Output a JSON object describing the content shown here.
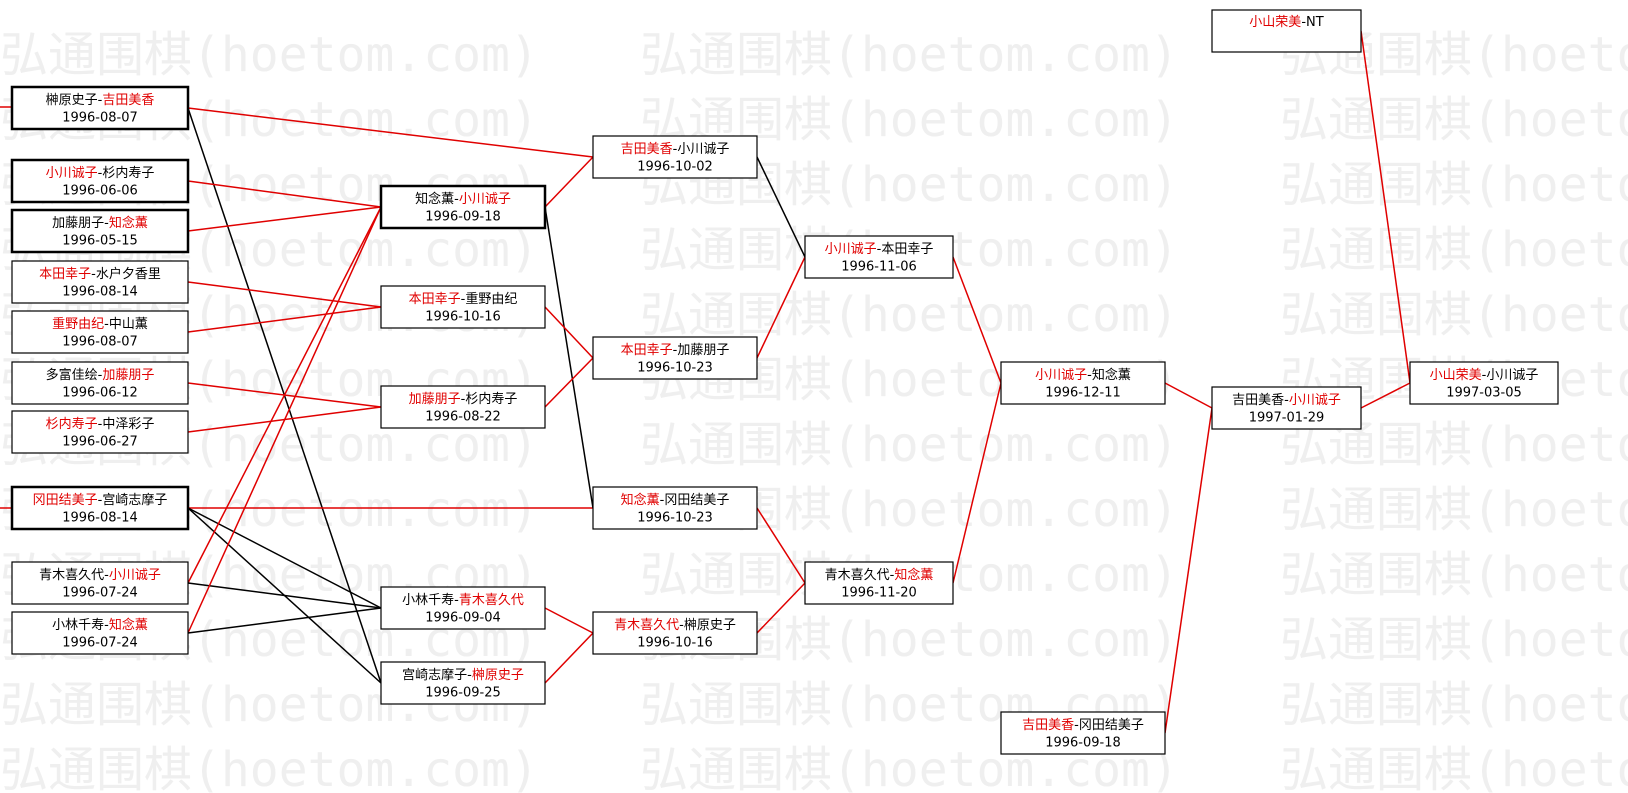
{
  "watermark": "弘通围棋(hoetom.com)",
  "separator": "-",
  "winner_color": "#e00000",
  "nodes": [
    {
      "players": [
        "榊原史子",
        "吉田美香"
      ],
      "winner": 1,
      "date": "1996-08-07",
      "bold_border": true
    },
    {
      "players": [
        "小川诚子",
        "杉内寿子"
      ],
      "winner": 0,
      "date": "1996-06-06",
      "bold_border": true
    },
    {
      "players": [
        "加藤朋子",
        "知念薫"
      ],
      "winner": 1,
      "date": "1996-05-15",
      "bold_border": true
    },
    {
      "players": [
        "本田幸子",
        "水户夕香里"
      ],
      "winner": 0,
      "date": "1996-08-14"
    },
    {
      "players": [
        "重野由纪",
        "中山薫"
      ],
      "winner": 0,
      "date": "1996-08-07"
    },
    {
      "players": [
        "多富佳绘",
        "加藤朋子"
      ],
      "winner": 1,
      "date": "1996-06-12"
    },
    {
      "players": [
        "杉内寿子",
        "中泽彩子"
      ],
      "winner": 0,
      "date": "1996-06-27"
    },
    {
      "players": [
        "冈田结美子",
        "宫崎志摩子"
      ],
      "winner": 0,
      "date": "1996-08-14",
      "bold_border": true
    },
    {
      "players": [
        "青木喜久代",
        "小川诚子"
      ],
      "winner": 1,
      "date": "1996-07-24"
    },
    {
      "players": [
        "小林千寿",
        "知念薫"
      ],
      "winner": 1,
      "date": "1996-07-24"
    },
    {
      "players": [
        "知念薫",
        "小川诚子"
      ],
      "winner": 1,
      "date": "1996-09-18",
      "bold_border": true
    },
    {
      "players": [
        "本田幸子",
        "重野由纪"
      ],
      "winner": 0,
      "date": "1996-10-16"
    },
    {
      "players": [
        "加藤朋子",
        "杉内寿子"
      ],
      "winner": 0,
      "date": "1996-08-22"
    },
    {
      "players": [
        "小林千寿",
        "青木喜久代"
      ],
      "winner": 1,
      "date": "1996-09-04"
    },
    {
      "players": [
        "宫崎志摩子",
        "榊原史子"
      ],
      "winner": 1,
      "date": "1996-09-25"
    },
    {
      "players": [
        "吉田美香",
        "小川诚子"
      ],
      "winner": 0,
      "date": "1996-10-02"
    },
    {
      "players": [
        "本田幸子",
        "加藤朋子"
      ],
      "winner": 0,
      "date": "1996-10-23"
    },
    {
      "players": [
        "知念薫",
        "冈田结美子"
      ],
      "winner": 0,
      "date": "1996-10-23"
    },
    {
      "players": [
        "青木喜久代",
        "榊原史子"
      ],
      "winner": 0,
      "date": "1996-10-16"
    },
    {
      "players": [
        "小川诚子",
        "本田幸子"
      ],
      "winner": 0,
      "date": "1996-11-06"
    },
    {
      "players": [
        "青木喜久代",
        "知念薫"
      ],
      "winner": 1,
      "date": "1996-11-20"
    },
    {
      "players": [
        "小川诚子",
        "知念薫"
      ],
      "winner": 0,
      "date": "1996-12-11"
    },
    {
      "players": [
        "吉田美香",
        "冈田结美子"
      ],
      "winner": 0,
      "date": "1996-09-18"
    },
    {
      "players": [
        "吉田美香",
        "小川诚子"
      ],
      "winner": 1,
      "date": "1997-01-29"
    },
    {
      "players": [
        "小山荣美",
        "NT"
      ],
      "winner": 0
    },
    {
      "players": [
        "小山荣美",
        "小川诚子"
      ],
      "winner": 0,
      "date": "1997-03-05"
    }
  ],
  "edges": [
    {
      "from": 0,
      "to": 15,
      "color": "#e00000"
    },
    {
      "from": 0,
      "to": 14,
      "color": "#000000"
    },
    {
      "from": 1,
      "to": 10,
      "color": "#e00000"
    },
    {
      "from": 2,
      "to": 10,
      "color": "#e00000"
    },
    {
      "from": 3,
      "to": 11,
      "color": "#e00000"
    },
    {
      "from": 4,
      "to": 11,
      "color": "#e00000"
    },
    {
      "from": 5,
      "to": 12,
      "color": "#e00000"
    },
    {
      "from": 6,
      "to": 12,
      "color": "#e00000"
    },
    {
      "from": 7,
      "to": 17,
      "color": "#e00000"
    },
    {
      "from": 7,
      "to": 13,
      "color": "#000000"
    },
    {
      "from": 7,
      "to": 14,
      "color": "#000000"
    },
    {
      "from": 8,
      "to": 10,
      "color": "#e00000"
    },
    {
      "from": 8,
      "to": 13,
      "color": "#000000"
    },
    {
      "from": 9,
      "to": 10,
      "color": "#e00000"
    },
    {
      "from": 9,
      "to": 13,
      "color": "#000000"
    },
    {
      "from": 10,
      "to": 15,
      "color": "#e00000"
    },
    {
      "from": 10,
      "to": 17,
      "color": "#000000"
    },
    {
      "from": 11,
      "to": 16,
      "color": "#e00000"
    },
    {
      "from": 12,
      "to": 16,
      "color": "#e00000"
    },
    {
      "from": 13,
      "to": 18,
      "color": "#e00000"
    },
    {
      "from": 14,
      "to": 18,
      "color": "#e00000"
    },
    {
      "from": 15,
      "to": 19,
      "color": "#000000"
    },
    {
      "from": 16,
      "to": 19,
      "color": "#e00000"
    },
    {
      "from": 17,
      "to": 20,
      "color": "#e00000"
    },
    {
      "from": 18,
      "to": 20,
      "color": "#e00000"
    },
    {
      "from": 19,
      "to": 21,
      "color": "#e00000"
    },
    {
      "from": 20,
      "to": 21,
      "color": "#e00000"
    },
    {
      "from": 21,
      "to": 23,
      "color": "#e00000"
    },
    {
      "from": 22,
      "to": 23,
      "color": "#e00000"
    },
    {
      "from": 23,
      "to": 25,
      "color": "#e00000"
    },
    {
      "from": 24,
      "to": 25,
      "color": "#e00000"
    }
  ]
}
